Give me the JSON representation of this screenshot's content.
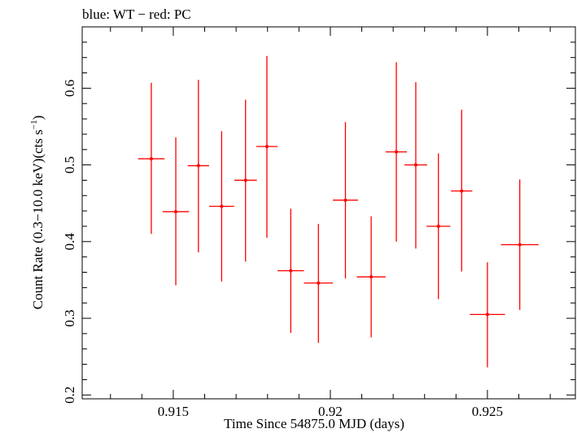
{
  "chart_data": {
    "type": "scatter",
    "title": "blue: WT − red: PC",
    "xlabel": "Time Since 54875.0 MJD (days)",
    "ylabel_main": "Count Rate (0.3−10.0 keV)(cts s",
    "ylabel_sup": "−1",
    "ylabel_close": ")",
    "xlim": [
      0.9121,
      0.9278
    ],
    "ylim": [
      0.195,
      0.68
    ],
    "xticks": [
      {
        "value": 0.915,
        "label": "0.915"
      },
      {
        "value": 0.92,
        "label": "0.92"
      },
      {
        "value": 0.925,
        "label": "0.925"
      }
    ],
    "yticks": [
      {
        "value": 0.2,
        "label": "0.2"
      },
      {
        "value": 0.3,
        "label": "0.3"
      },
      {
        "value": 0.4,
        "label": "0.4"
      },
      {
        "value": 0.5,
        "label": "0.5"
      },
      {
        "value": 0.6,
        "label": "0.6"
      }
    ],
    "color": "#ff0000",
    "series": [
      {
        "name": "PC",
        "color": "#ff0000",
        "points": [
          {
            "x": 0.9143,
            "xerr": 0.00042,
            "y": 0.508,
            "ylo": 0.41,
            "yhi": 0.607
          },
          {
            "x": 0.91508,
            "xerr": 0.00042,
            "y": 0.439,
            "ylo": 0.343,
            "yhi": 0.536
          },
          {
            "x": 0.9158,
            "xerr": 0.00034,
            "y": 0.499,
            "ylo": 0.386,
            "yhi": 0.611
          },
          {
            "x": 0.91654,
            "xerr": 0.0004,
            "y": 0.446,
            "ylo": 0.348,
            "yhi": 0.544
          },
          {
            "x": 0.9173,
            "xerr": 0.00036,
            "y": 0.48,
            "ylo": 0.374,
            "yhi": 0.585
          },
          {
            "x": 0.91798,
            "xerr": 0.00034,
            "y": 0.524,
            "ylo": 0.405,
            "yhi": 0.642
          },
          {
            "x": 0.91874,
            "xerr": 0.00042,
            "y": 0.362,
            "ylo": 0.281,
            "yhi": 0.443
          },
          {
            "x": 0.91962,
            "xerr": 0.00046,
            "y": 0.346,
            "ylo": 0.268,
            "yhi": 0.423
          },
          {
            "x": 0.92048,
            "xerr": 0.0004,
            "y": 0.454,
            "ylo": 0.352,
            "yhi": 0.556
          },
          {
            "x": 0.9213,
            "xerr": 0.00046,
            "y": 0.354,
            "ylo": 0.275,
            "yhi": 0.433
          },
          {
            "x": 0.9221,
            "xerr": 0.00034,
            "y": 0.517,
            "ylo": 0.4,
            "yhi": 0.634
          },
          {
            "x": 0.92272,
            "xerr": 0.00036,
            "y": 0.5,
            "ylo": 0.391,
            "yhi": 0.608
          },
          {
            "x": 0.92344,
            "xerr": 0.00038,
            "y": 0.42,
            "ylo": 0.325,
            "yhi": 0.515
          },
          {
            "x": 0.92418,
            "xerr": 0.00034,
            "y": 0.466,
            "ylo": 0.361,
            "yhi": 0.572
          },
          {
            "x": 0.925,
            "xerr": 0.00056,
            "y": 0.305,
            "ylo": 0.236,
            "yhi": 0.373
          },
          {
            "x": 0.92603,
            "xerr": 0.0006,
            "y": 0.396,
            "ylo": 0.311,
            "yhi": 0.481
          }
        ]
      }
    ]
  }
}
